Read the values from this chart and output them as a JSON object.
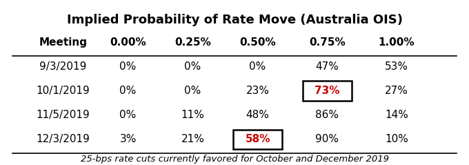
{
  "title": "Implied Probability of Rate Move (Australia OIS)",
  "columns": [
    "Meeting",
    "0.00%",
    "0.25%",
    "0.50%",
    "0.75%",
    "1.00%"
  ],
  "rows": [
    [
      "9/3/2019",
      "0%",
      "0%",
      "0%",
      "47%",
      "53%"
    ],
    [
      "10/1/2019",
      "0%",
      "0%",
      "23%",
      "73%",
      "27%"
    ],
    [
      "11/5/2019",
      "0%",
      "11%",
      "48%",
      "86%",
      "14%"
    ],
    [
      "12/3/2019",
      "3%",
      "21%",
      "58%",
      "90%",
      "10%"
    ]
  ],
  "highlight_cells": [
    {
      "row": 1,
      "col": 4,
      "box": true,
      "red": true
    },
    {
      "row": 3,
      "col": 3,
      "box": true,
      "red": true
    }
  ],
  "footnote": "25-bps rate cuts currently favored for October and December 2019",
  "bg_color": "#ffffff",
  "header_color": "#000000",
  "text_color": "#000000",
  "red_color": "#cc0000",
  "title_fontsize": 13,
  "header_fontsize": 11,
  "cell_fontsize": 11,
  "footnote_fontsize": 9.5
}
